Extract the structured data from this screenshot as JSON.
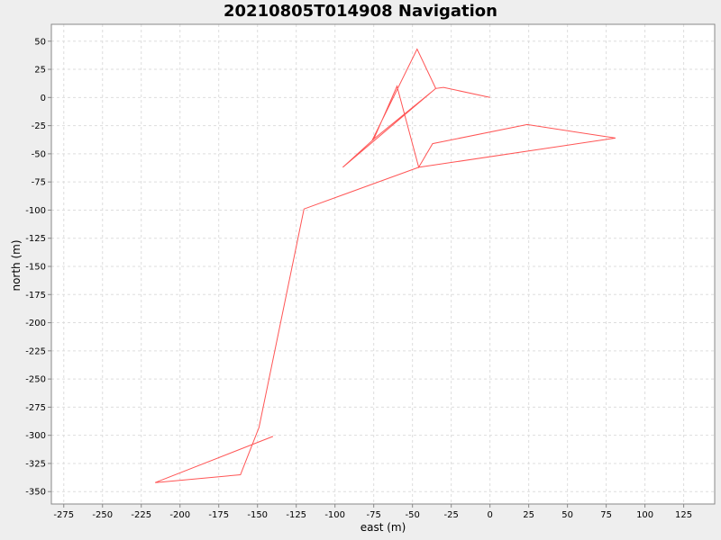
{
  "chart_data": {
    "type": "line",
    "title": "20210805T014908 Navigation",
    "xlabel": "east (m)",
    "ylabel": "north (m)",
    "xlim": [
      -283,
      145
    ],
    "ylim": [
      -361,
      65
    ],
    "xticks": [
      -275,
      -250,
      -225,
      -200,
      -175,
      -150,
      -125,
      -100,
      -75,
      -50,
      -25,
      0,
      25,
      50,
      75,
      100,
      125
    ],
    "yticks": [
      50,
      25,
      0,
      -25,
      -50,
      -75,
      -100,
      -125,
      -150,
      -175,
      -200,
      -225,
      -250,
      -275,
      -300,
      -325,
      -350
    ],
    "grid": true,
    "line_color": "#ff5555",
    "series": [
      {
        "x": [
          0,
          -30,
          -35,
          -76,
          -47,
          -35,
          -95,
          -75,
          -60,
          -46,
          -37,
          24,
          81,
          -46,
          -120,
          -149,
          -161,
          -216,
          -140
        ],
        "y": [
          0,
          9,
          8,
          -38,
          43,
          8,
          -62,
          -37,
          10,
          -62,
          -41,
          -24,
          -36,
          -62,
          -99,
          -293,
          -335,
          -342,
          -301
        ]
      }
    ]
  }
}
